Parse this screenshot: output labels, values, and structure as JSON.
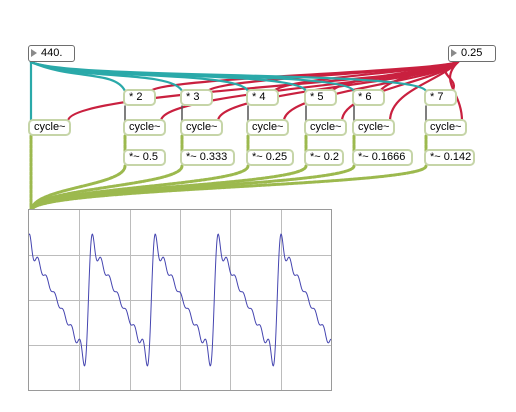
{
  "patch": {
    "frequency_number": "440.",
    "amplitude_number": "0.25",
    "oscillators": [
      {
        "multiplier": "* 2",
        "osc": "cycle~",
        "gain": "*~ 0.5"
      },
      {
        "multiplier": "* 3",
        "osc": "cycle~",
        "gain": "*~ 0.333"
      },
      {
        "multiplier": "* 4",
        "osc": "cycle~",
        "gain": "*~ 0.25"
      },
      {
        "multiplier": "* 5",
        "osc": "cycle~",
        "gain": "*~ 0.2"
      },
      {
        "multiplier": "* 6",
        "osc": "cycle~",
        "gain": "*~ 0.1666"
      },
      {
        "multiplier": "* 7",
        "osc": "cycle~",
        "gain": "*~ 0.142"
      }
    ],
    "fundamental_osc": "cycle~"
  },
  "colors": {
    "frequency_cable": "#2aa9a9",
    "amplitude_cable": "#c9203f",
    "signal_cable": "#9cb94e",
    "object_border": "#c6d5a8",
    "scope_trace": "#4545b0",
    "scope_grid": "#bcbcbc"
  }
}
